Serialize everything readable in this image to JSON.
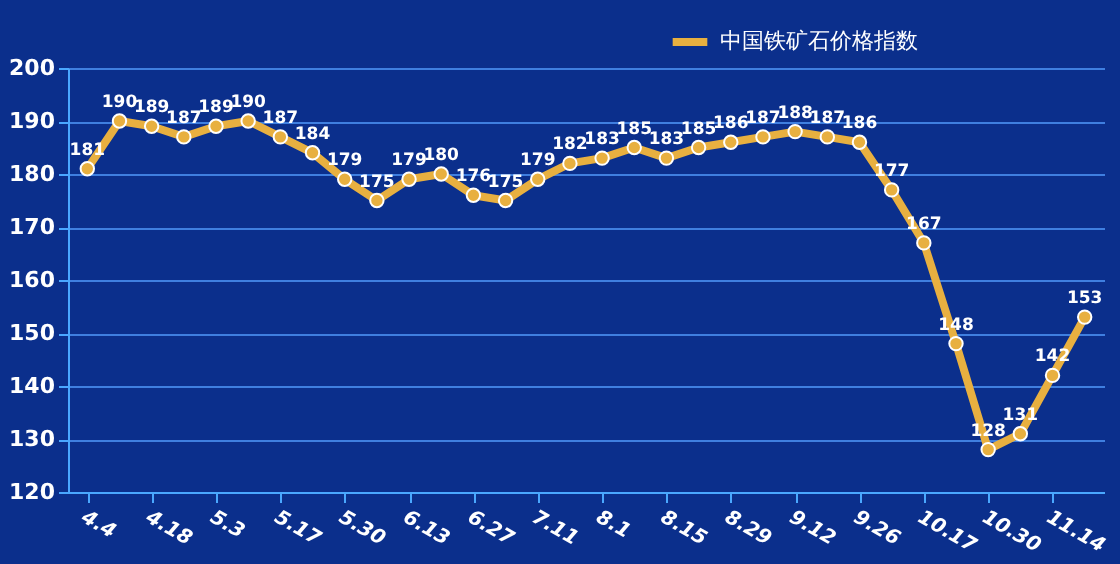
{
  "chart_data": {
    "type": "line",
    "categories": [
      "4.4",
      null,
      "4.18",
      null,
      "5.3",
      null,
      "5.17",
      null,
      "5.30",
      null,
      "6.13",
      null,
      "6.27",
      null,
      "7.11",
      null,
      "8.1",
      null,
      "8.15",
      null,
      "8.29",
      null,
      "9.12",
      null,
      "9.26",
      null,
      "10.17",
      null,
      "10.30",
      null,
      "11.14",
      null
    ],
    "series": [
      {
        "name": "中国铁矿石价格指数",
        "color": "#e8b040",
        "values": [
          181,
          190,
          189,
          187,
          189,
          190,
          187,
          184,
          179,
          175,
          179,
          180,
          176,
          175,
          179,
          182,
          183,
          185,
          183,
          185,
          186,
          187,
          188,
          187,
          186,
          177,
          167,
          148,
          128,
          131,
          142,
          153
        ]
      }
    ],
    "ylim": [
      120,
      200
    ],
    "yticks": [
      120,
      130,
      140,
      150,
      160,
      170,
      180,
      190,
      200
    ],
    "grid": "y",
    "legend": "top right",
    "marker": "circle",
    "line_style": "solid",
    "data_labels": true
  }
}
